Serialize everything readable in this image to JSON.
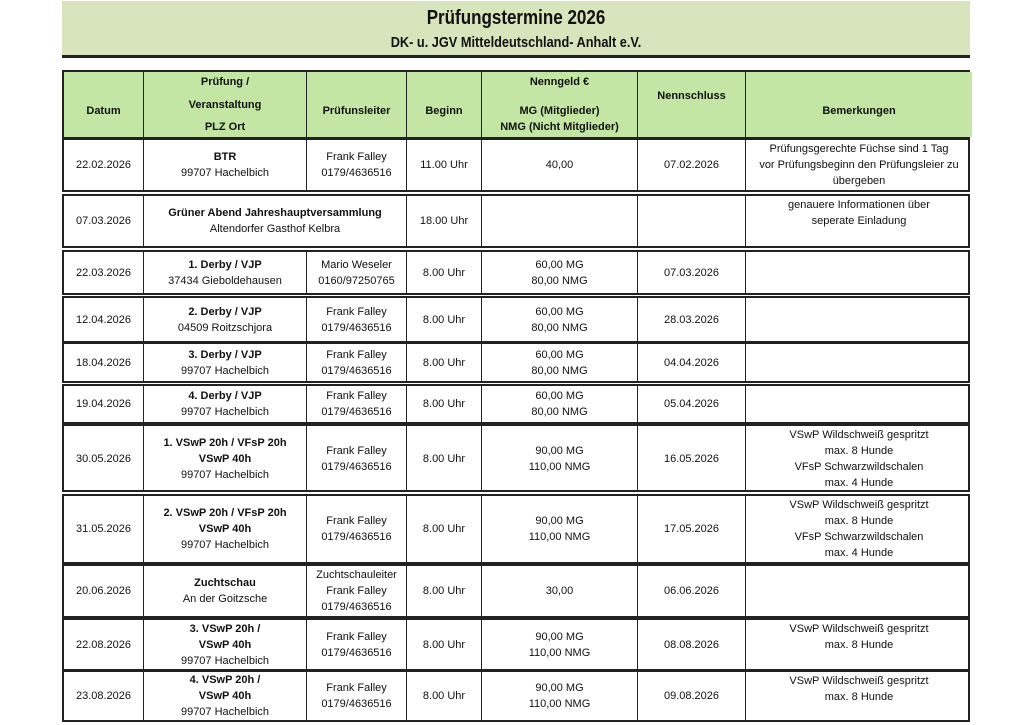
{
  "title": "Prüfungstermine 2026",
  "subtitle": "DK- u. JGV Mitteldeutschland- Anhalt e.V.",
  "colors": {
    "header_bg": "#c4e6a4",
    "title_bg": "#d8e4bc"
  },
  "headers": {
    "datum": "Datum",
    "pruefung": [
      "Prüfung /",
      "Veranstaltung",
      "PLZ Ort"
    ],
    "leiter": "Prüfunsleiter",
    "beginn": "Beginn",
    "nenngeld": [
      "Nenngeld €",
      "MG (Mitglieder)",
      "NMG (Nicht Mitglieder)"
    ],
    "nennschluss": "Nennschluss",
    "bemerkungen": "Bemerkungen"
  },
  "rows": [
    {
      "datum": "22.02.2026",
      "event_bold": [
        "BTR"
      ],
      "event": [
        "99707 Hachelbich"
      ],
      "leiter": [
        "Frank Falley",
        "0179/4636516"
      ],
      "beginn": "11.00 Uhr",
      "geld": [
        "40,00"
      ],
      "schluss": "07.02.2026",
      "bem": [
        "Prüfungsgerechte Füchse sind 1 Tag",
        "vor Prüfungsbeginn den Prüfungsleier zu",
        "übergeben"
      ]
    },
    {
      "datum": "07.03.2026",
      "event_bold": [
        "Grüner Abend Jahreshauptversammlung"
      ],
      "event": [
        "Altendorfer Gasthof Kelbra"
      ],
      "leiter": [],
      "beginn": "18.00 Uhr",
      "geld": [],
      "schluss": "",
      "bem": [
        "genauere Informationen über",
        "seperate Einladung"
      ],
      "span": true
    },
    {
      "datum": "22.03.2026",
      "event_bold": [
        "1. Derby / VJP"
      ],
      "event": [
        "37434 Gieboldehausen"
      ],
      "leiter": [
        "Mario Weseler",
        "0160/97250765"
      ],
      "beginn": "8.00 Uhr",
      "geld": [
        "60,00 MG",
        "80,00  NMG"
      ],
      "schluss": "07.03.2026",
      "bem": []
    },
    {
      "datum": "12.04.2026",
      "event_bold": [
        "2. Derby / VJP"
      ],
      "event": [
        "04509 Roitzschjora"
      ],
      "leiter": [
        "Frank Falley",
        "0179/4636516"
      ],
      "beginn": "8.00 Uhr",
      "geld": [
        "60,00 MG",
        "80,00  NMG"
      ],
      "schluss": "28.03.2026",
      "bem": []
    },
    {
      "datum": "18.04.2026",
      "event_bold": [
        "3. Derby / VJP"
      ],
      "event": [
        "99707 Hachelbich"
      ],
      "leiter": [
        "Frank Falley",
        "0179/4636516"
      ],
      "beginn": "8.00 Uhr",
      "geld": [
        "60,00 MG",
        "80,00  NMG"
      ],
      "schluss": "04.04.2026",
      "bem": []
    },
    {
      "datum": "19.04.2026",
      "event_bold": [
        "4. Derby / VJP"
      ],
      "event": [
        "99707 Hachelbich"
      ],
      "leiter": [
        "Frank Falley",
        "0179/4636516"
      ],
      "beginn": "8.00 Uhr",
      "geld": [
        "60,00 MG",
        "80,00 NMG"
      ],
      "schluss": "05.04.2026",
      "bem": []
    },
    {
      "datum": "30.05.2026",
      "event_bold": [
        "1. VSwP 20h / VFsP 20h",
        "VSwP 40h"
      ],
      "event": [
        "99707 Hachelbich"
      ],
      "leiter": [
        "Frank Falley",
        "0179/4636516"
      ],
      "beginn": "8.00 Uhr",
      "geld": [
        "90,00 MG",
        "110,00  NMG"
      ],
      "schluss": "16.05.2026",
      "bem": [
        "VSwP Wildschweiß gespritzt",
        "max. 8 Hunde",
        "VFsP Schwarzwildschalen",
        "max. 4 Hunde"
      ]
    },
    {
      "datum": "31.05.2026",
      "event_bold": [
        "2. VSwP 20h / VFsP 20h",
        "VSwP 40h"
      ],
      "event": [
        "99707 Hachelbich"
      ],
      "leiter": [
        "Frank Falley",
        "0179/4636516"
      ],
      "beginn": "8.00 Uhr",
      "geld": [
        "90,00 MG",
        "110,00  NMG"
      ],
      "schluss": "17.05.2026",
      "bem": [
        "VSwP Wildschweiß gespritzt",
        "max. 8 Hunde",
        "VFsP Schwarzwildschalen",
        "max. 4 Hunde"
      ]
    },
    {
      "datum": "20.06.2026",
      "event_bold": [
        "Zuchtschau"
      ],
      "event": [
        "An der Goitzsche"
      ],
      "leiter": [
        "Zuchtschauleiter",
        "Frank Falley",
        "0179/4636516"
      ],
      "beginn": "8.00 Uhr",
      "geld": [
        "30,00"
      ],
      "schluss": "06.06.2026",
      "bem": []
    },
    {
      "datum": "22.08.2026",
      "event_bold": [
        "3. VSwP 20h /",
        "VSwP 40h"
      ],
      "event": [
        "99707 Hachelbich"
      ],
      "leiter": [
        "Frank Falley",
        "0179/4636516"
      ],
      "beginn": "8.00 Uhr",
      "geld": [
        "90,00 MG",
        "110,00  NMG"
      ],
      "schluss": "08.08.2026",
      "bem": [
        "VSwP Wildschweiß gespritzt",
        "max. 8 Hunde"
      ]
    },
    {
      "datum": "23.08.2026",
      "event_bold": [
        "4. VSwP 20h /",
        "VSwP 40h"
      ],
      "event": [
        "99707 Hachelbich"
      ],
      "leiter": [
        "Frank Falley",
        "0179/4636516"
      ],
      "beginn": "8.00 Uhr",
      "geld": [
        "90,00 MG",
        "110,00  NMG"
      ],
      "schluss": "09.08.2026",
      "bem": [
        "VSwP Wildschweiß gespritzt",
        "max. 8 Hunde"
      ]
    }
  ]
}
